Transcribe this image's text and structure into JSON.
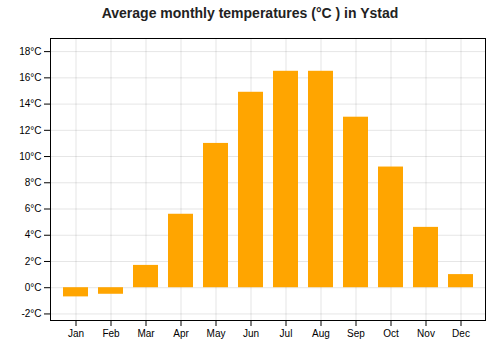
{
  "chart_data": {
    "type": "bar",
    "title": "Average monthly temperatures (°C ) in Ystad",
    "categories": [
      "Jan",
      "Feb",
      "Mar",
      "Apr",
      "May",
      "Jun",
      "Jul",
      "Aug",
      "Sep",
      "Oct",
      "Nov",
      "Dec"
    ],
    "values": [
      -0.7,
      -0.5,
      1.7,
      5.6,
      11.0,
      14.9,
      16.5,
      16.5,
      13.0,
      9.2,
      4.6,
      1.0
    ],
    "color": "#FFA500",
    "ylim": [
      -2.5,
      19
    ],
    "yticks": [
      {
        "value": -2,
        "label": "-2°C"
      },
      {
        "value": 0,
        "label": "0°C"
      },
      {
        "value": 2,
        "label": "2°C"
      },
      {
        "value": 4,
        "label": "4°C"
      },
      {
        "value": 6,
        "label": "6°C"
      },
      {
        "value": 8,
        "label": "8°C"
      },
      {
        "value": 10,
        "label": "10°C"
      },
      {
        "value": 12,
        "label": "12°C"
      },
      {
        "value": 14,
        "label": "14°C"
      },
      {
        "value": 16,
        "label": "16°C"
      },
      {
        "value": 18,
        "label": "18°C"
      }
    ],
    "grid": true
  }
}
